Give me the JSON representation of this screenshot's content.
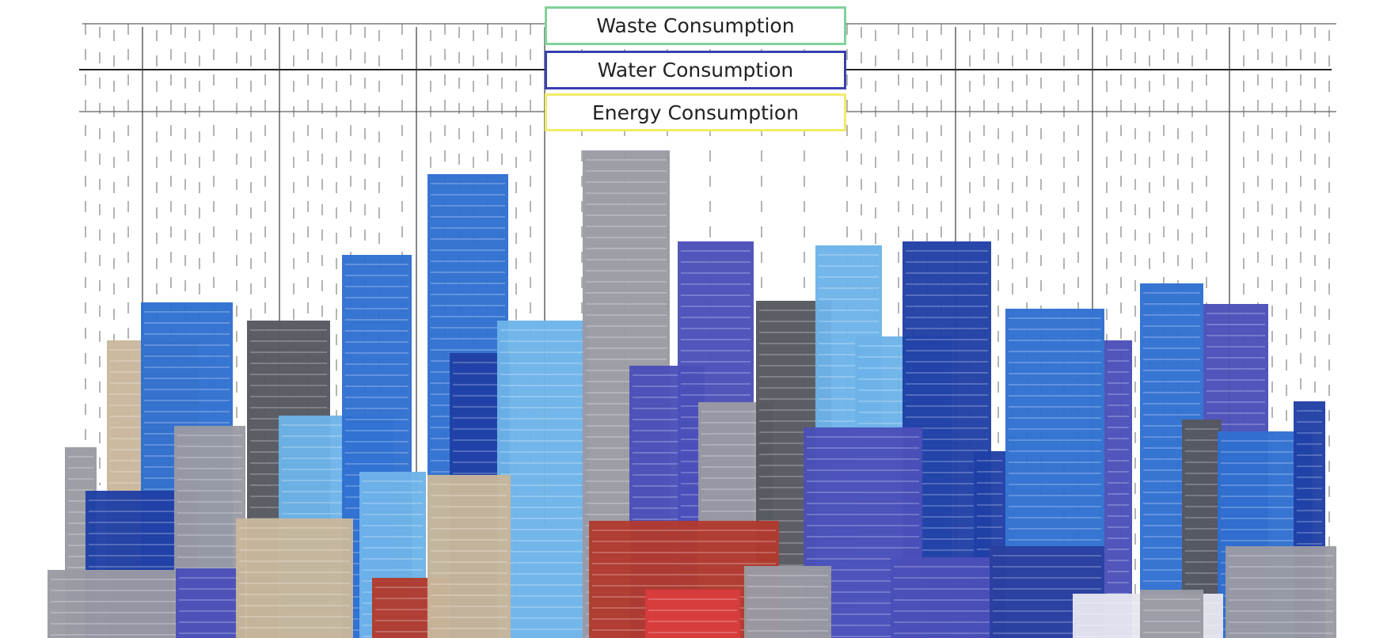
{
  "legend": {
    "waste": {
      "label": "Waste Consumption",
      "border_color": "#7fd39a"
    },
    "water": {
      "label": "Water Consumption",
      "border_color": "#3840b0"
    },
    "energy": {
      "label": "Energy Consumption",
      "border_color": "#f0ec6a"
    }
  },
  "skyline": {
    "palette": {
      "dark_blue": "#1f3fa6",
      "mid_blue": "#2f6fd0",
      "light_blue": "#6db3e8",
      "grey": "#9a9aa3",
      "dark_grey": "#55575f",
      "tan": "#c9b79b",
      "brick_red": "#b23a2e",
      "purple_blue": "#4b4fb8"
    }
  }
}
